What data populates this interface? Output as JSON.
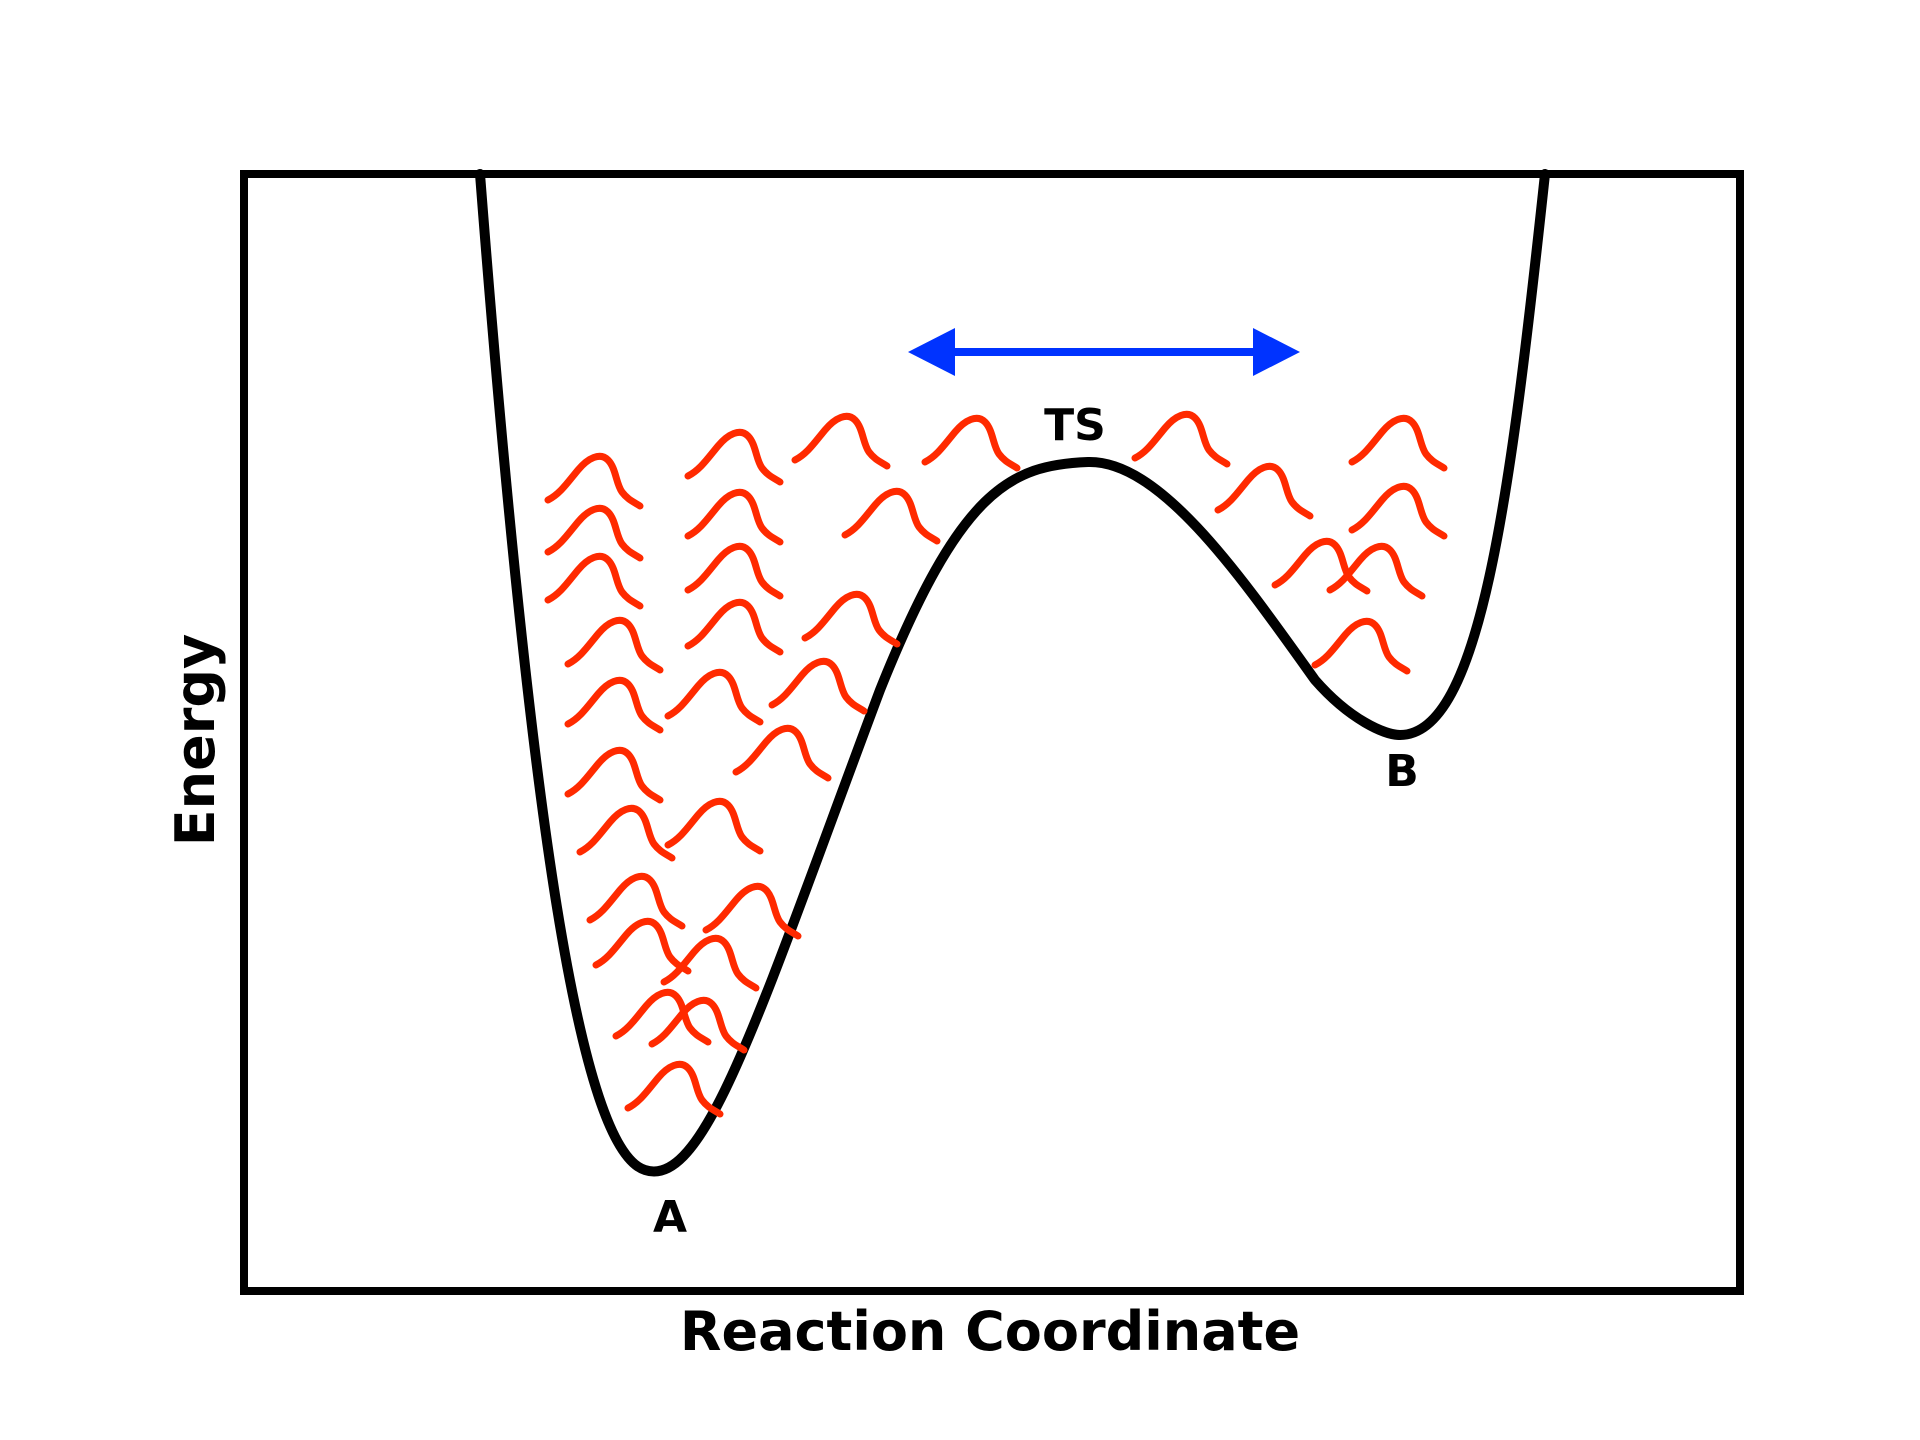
{
  "axes": {
    "x_label": "Reaction Coordinate",
    "y_label": "Energy"
  },
  "points": {
    "reactant": "A",
    "transition_state": "TS",
    "product": "B"
  },
  "colors": {
    "curve": "#000000",
    "frame": "#000000",
    "wavepackets": "#ff2a00",
    "arrow": "#0033ff"
  },
  "arrow": {
    "direction": "double-headed horizontal"
  },
  "legend": {
    "wavepacket_icon": "wave-squiggle-icon"
  }
}
